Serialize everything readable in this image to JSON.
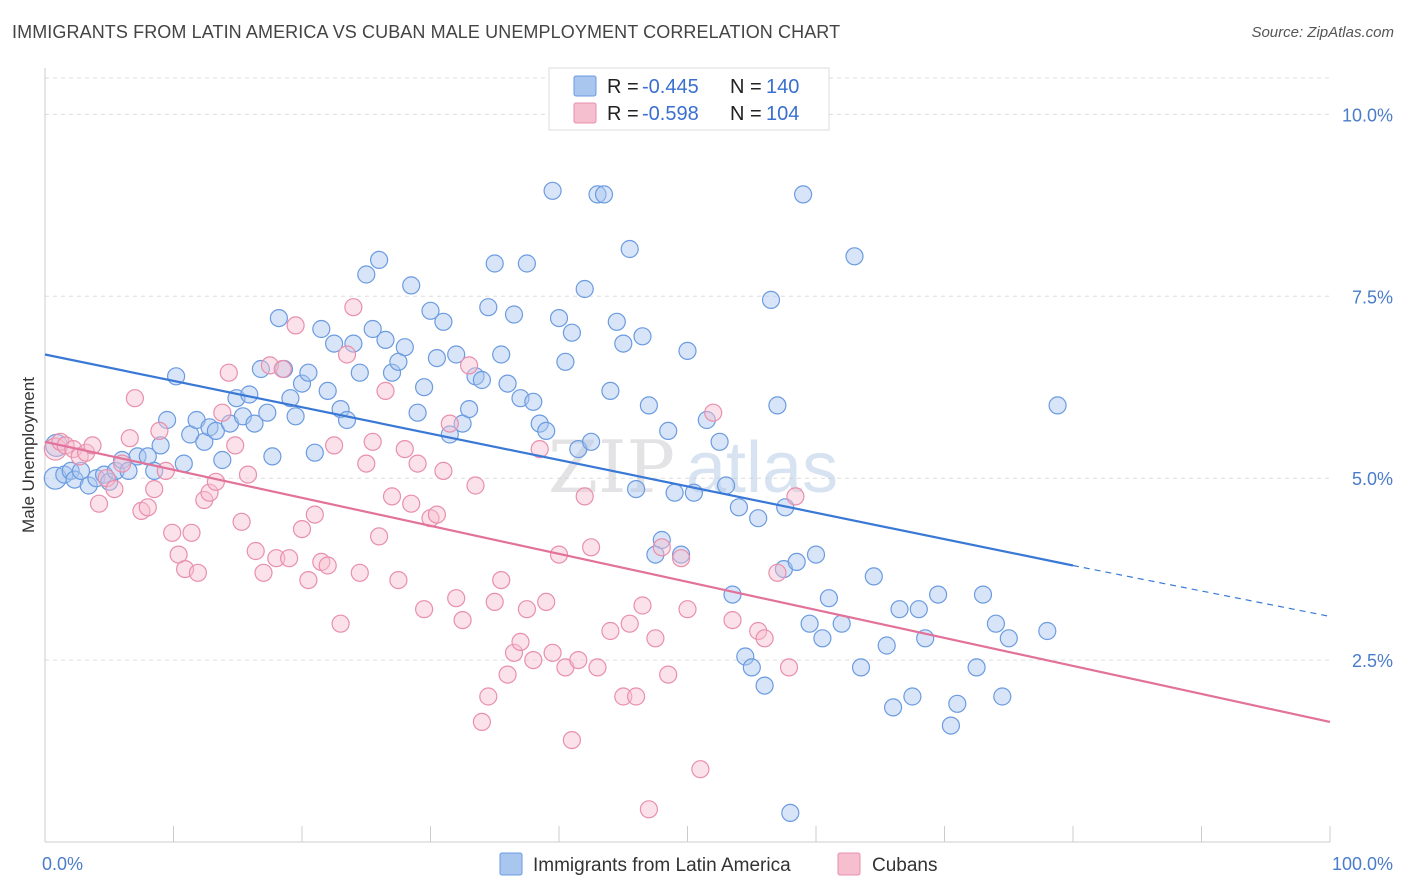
{
  "header": {
    "title": "IMMIGRANTS FROM LATIN AMERICA VS CUBAN MALE UNEMPLOYMENT CORRELATION CHART",
    "source": "Source: ZipAtlas.com"
  },
  "watermark": {
    "zip": "ZIP",
    "atlas": "atlas"
  },
  "legend": {
    "r_label": "R =",
    "n_label": "N =",
    "entries": [
      {
        "r": "-0.445",
        "n": "140"
      },
      {
        "r": "-0.598",
        "n": "104"
      }
    ]
  },
  "bottom_legend": {
    "items": [
      "Immigrants from Latin America",
      "Cubans"
    ]
  },
  "colors": {
    "blue_fill": "#a9c6ef",
    "blue_stroke": "#6b9be0",
    "blue_line": "#3a78d6",
    "pink_fill": "#f6bfd0",
    "pink_stroke": "#e98fac",
    "pink_line": "#e2729a",
    "grid": "#dddddd",
    "tick_text": "#4a7cc9"
  },
  "chart_data": {
    "type": "scatter",
    "title": "IMMIGRANTS FROM LATIN AMERICA VS CUBAN MALE UNEMPLOYMENT CORRELATION CHART",
    "xlabel": "",
    "ylabel": "Male Unemployment",
    "xlim": [
      0,
      100
    ],
    "ylim": [
      0,
      10.5
    ],
    "x_ticks": [
      "0.0%",
      "100.0%"
    ],
    "y_ticks": [
      {
        "value": 2.5,
        "label": "2.5%"
      },
      {
        "value": 5.0,
        "label": "5.0%"
      },
      {
        "value": 7.5,
        "label": "7.5%"
      },
      {
        "value": 10.0,
        "label": "10.0%"
      }
    ],
    "grid": true,
    "legend_position": "top-center",
    "series": [
      {
        "name": "Immigrants from Latin America",
        "trend": {
          "x0": 0,
          "y0": 6.7,
          "x1": 80,
          "y1": 3.8,
          "dash_to_x": 100,
          "dash_to_y": 3.1
        },
        "points": [
          [
            0.8,
            5.0
          ],
          [
            0.9,
            5.45
          ],
          [
            1.5,
            5.05
          ],
          [
            2.0,
            5.1
          ],
          [
            2.3,
            4.98
          ],
          [
            2.8,
            5.1
          ],
          [
            3.4,
            4.9
          ],
          [
            4.0,
            5.0
          ],
          [
            4.6,
            5.05
          ],
          [
            5.0,
            4.95
          ],
          [
            5.5,
            5.1
          ],
          [
            6.0,
            5.25
          ],
          [
            6.5,
            5.1
          ],
          [
            7.2,
            5.3
          ],
          [
            8.0,
            5.3
          ],
          [
            8.5,
            5.1
          ],
          [
            9.0,
            5.45
          ],
          [
            9.5,
            5.8
          ],
          [
            10.2,
            6.4
          ],
          [
            10.8,
            5.2
          ],
          [
            11.3,
            5.6
          ],
          [
            11.8,
            5.8
          ],
          [
            12.4,
            5.5
          ],
          [
            12.8,
            5.7
          ],
          [
            13.3,
            5.65
          ],
          [
            13.8,
            5.25
          ],
          [
            14.4,
            5.75
          ],
          [
            14.9,
            6.1
          ],
          [
            15.4,
            5.85
          ],
          [
            15.9,
            6.15
          ],
          [
            16.3,
            5.75
          ],
          [
            16.8,
            6.5
          ],
          [
            17.3,
            5.9
          ],
          [
            17.7,
            5.3
          ],
          [
            18.2,
            7.2
          ],
          [
            18.6,
            6.5
          ],
          [
            19.1,
            6.1
          ],
          [
            19.5,
            5.85
          ],
          [
            20.0,
            6.3
          ],
          [
            20.5,
            6.45
          ],
          [
            21.0,
            5.35
          ],
          [
            21.5,
            7.05
          ],
          [
            22.0,
            6.2
          ],
          [
            22.5,
            6.85
          ],
          [
            23.0,
            5.95
          ],
          [
            23.5,
            5.8
          ],
          [
            24.0,
            6.85
          ],
          [
            24.5,
            6.45
          ],
          [
            25.0,
            7.8
          ],
          [
            25.5,
            7.05
          ],
          [
            26.0,
            8.0
          ],
          [
            26.5,
            6.9
          ],
          [
            27.0,
            6.45
          ],
          [
            27.5,
            6.6
          ],
          [
            28.0,
            6.8
          ],
          [
            28.5,
            7.65
          ],
          [
            29.0,
            5.9
          ],
          [
            29.5,
            6.25
          ],
          [
            30.0,
            7.3
          ],
          [
            30.5,
            6.65
          ],
          [
            31.0,
            7.15
          ],
          [
            31.5,
            5.6
          ],
          [
            32.0,
            6.7
          ],
          [
            32.5,
            5.75
          ],
          [
            33.0,
            5.95
          ],
          [
            33.5,
            6.4
          ],
          [
            34.0,
            6.35
          ],
          [
            34.5,
            7.35
          ],
          [
            35.0,
            7.95
          ],
          [
            35.5,
            6.7
          ],
          [
            36.0,
            6.3
          ],
          [
            36.5,
            7.25
          ],
          [
            37.0,
            6.1
          ],
          [
            37.5,
            7.95
          ],
          [
            38.0,
            6.05
          ],
          [
            38.5,
            5.75
          ],
          [
            39.0,
            5.65
          ],
          [
            39.5,
            8.95
          ],
          [
            40.0,
            7.2
          ],
          [
            40.5,
            6.6
          ],
          [
            41.0,
            7.0
          ],
          [
            41.5,
            5.4
          ],
          [
            42.0,
            7.6
          ],
          [
            42.5,
            5.5
          ],
          [
            43.0,
            8.9
          ],
          [
            43.5,
            8.9
          ],
          [
            44.0,
            6.2
          ],
          [
            44.5,
            7.15
          ],
          [
            45.0,
            6.85
          ],
          [
            45.5,
            8.15
          ],
          [
            46.0,
            4.85
          ],
          [
            46.5,
            6.95
          ],
          [
            47.0,
            6.0
          ],
          [
            47.5,
            3.95
          ],
          [
            48.0,
            4.15
          ],
          [
            48.5,
            5.65
          ],
          [
            49.0,
            4.8
          ],
          [
            49.5,
            3.95
          ],
          [
            50.0,
            6.75
          ],
          [
            50.5,
            4.8
          ],
          [
            51.5,
            5.8
          ],
          [
            52.5,
            5.5
          ],
          [
            53.0,
            4.9
          ],
          [
            53.5,
            3.4
          ],
          [
            54.0,
            4.6
          ],
          [
            54.5,
            2.55
          ],
          [
            55.0,
            2.4
          ],
          [
            55.5,
            4.45
          ],
          [
            56.0,
            2.15
          ],
          [
            56.5,
            7.45
          ],
          [
            57.0,
            6.0
          ],
          [
            57.5,
            3.75
          ],
          [
            58.0,
            0.4
          ],
          [
            58.5,
            3.85
          ],
          [
            59.0,
            8.9
          ],
          [
            59.5,
            3.0
          ],
          [
            60.0,
            3.95
          ],
          [
            60.5,
            2.8
          ],
          [
            61.0,
            3.35
          ],
          [
            62.0,
            3.0
          ],
          [
            63.0,
            8.05
          ],
          [
            63.5,
            2.4
          ],
          [
            64.5,
            3.65
          ],
          [
            65.5,
            2.7
          ],
          [
            66.0,
            1.85
          ],
          [
            66.5,
            3.2
          ],
          [
            67.5,
            2.0
          ],
          [
            68.0,
            3.2
          ],
          [
            68.5,
            2.8
          ],
          [
            69.5,
            3.4
          ],
          [
            70.5,
            1.6
          ],
          [
            71.0,
            1.9
          ],
          [
            72.5,
            2.4
          ],
          [
            73.0,
            3.4
          ],
          [
            74.0,
            3.0
          ],
          [
            74.5,
            2.0
          ],
          [
            75.0,
            2.8
          ],
          [
            78.0,
            2.9
          ],
          [
            78.8,
            6.0
          ],
          [
            57.6,
            4.6
          ]
        ]
      },
      {
        "name": "Cubans",
        "trend": {
          "x0": 0,
          "y0": 5.5,
          "x1": 100,
          "y1": 1.65
        },
        "points": [
          [
            0.8,
            5.4
          ],
          [
            1.2,
            5.5
          ],
          [
            1.6,
            5.45
          ],
          [
            2.2,
            5.4
          ],
          [
            2.7,
            5.3
          ],
          [
            3.2,
            5.35
          ],
          [
            3.7,
            5.45
          ],
          [
            4.2,
            4.65
          ],
          [
            4.8,
            5.0
          ],
          [
            5.4,
            4.85
          ],
          [
            6.0,
            5.2
          ],
          [
            6.6,
            5.55
          ],
          [
            7.0,
            6.1
          ],
          [
            7.5,
            4.55
          ],
          [
            8.0,
            4.6
          ],
          [
            8.5,
            4.85
          ],
          [
            8.9,
            5.65
          ],
          [
            9.4,
            5.1
          ],
          [
            9.9,
            4.25
          ],
          [
            10.4,
            3.95
          ],
          [
            10.9,
            3.75
          ],
          [
            11.4,
            4.25
          ],
          [
            11.9,
            3.7
          ],
          [
            12.4,
            4.7
          ],
          [
            12.8,
            4.8
          ],
          [
            13.3,
            4.95
          ],
          [
            13.8,
            5.9
          ],
          [
            14.3,
            6.45
          ],
          [
            14.8,
            5.45
          ],
          [
            15.3,
            4.4
          ],
          [
            15.8,
            5.05
          ],
          [
            16.4,
            4.0
          ],
          [
            17.0,
            3.7
          ],
          [
            17.5,
            6.55
          ],
          [
            18.0,
            3.9
          ],
          [
            18.5,
            6.5
          ],
          [
            19.0,
            3.9
          ],
          [
            19.5,
            7.1
          ],
          [
            20.0,
            4.3
          ],
          [
            20.5,
            3.6
          ],
          [
            21.0,
            4.5
          ],
          [
            21.5,
            3.85
          ],
          [
            22.0,
            3.8
          ],
          [
            22.5,
            5.45
          ],
          [
            23.0,
            3.0
          ],
          [
            23.5,
            6.7
          ],
          [
            24.0,
            7.35
          ],
          [
            24.5,
            3.7
          ],
          [
            25.0,
            5.2
          ],
          [
            25.5,
            5.5
          ],
          [
            26.0,
            4.2
          ],
          [
            26.5,
            6.2
          ],
          [
            27.0,
            4.75
          ],
          [
            27.5,
            3.6
          ],
          [
            28.0,
            5.4
          ],
          [
            28.5,
            4.65
          ],
          [
            29.0,
            5.2
          ],
          [
            29.5,
            3.2
          ],
          [
            30.0,
            4.45
          ],
          [
            30.5,
            4.5
          ],
          [
            31.0,
            5.1
          ],
          [
            31.5,
            5.75
          ],
          [
            32.0,
            3.35
          ],
          [
            32.5,
            3.05
          ],
          [
            33.0,
            6.55
          ],
          [
            33.5,
            4.9
          ],
          [
            34.0,
            1.65
          ],
          [
            34.5,
            2.0
          ],
          [
            35.0,
            3.3
          ],
          [
            35.5,
            3.6
          ],
          [
            36.0,
            2.3
          ],
          [
            36.5,
            2.6
          ],
          [
            37.0,
            2.75
          ],
          [
            37.5,
            3.2
          ],
          [
            38.0,
            2.5
          ],
          [
            38.5,
            5.4
          ],
          [
            39.0,
            3.3
          ],
          [
            39.5,
            2.6
          ],
          [
            40.0,
            3.95
          ],
          [
            40.5,
            2.4
          ],
          [
            41.0,
            1.4
          ],
          [
            41.5,
            2.5
          ],
          [
            42.0,
            4.75
          ],
          [
            42.5,
            4.05
          ],
          [
            43.0,
            2.4
          ],
          [
            44.0,
            2.9
          ],
          [
            45.0,
            2.0
          ],
          [
            45.5,
            3.0
          ],
          [
            46.0,
            2.0
          ],
          [
            46.5,
            3.25
          ],
          [
            47.0,
            0.45
          ],
          [
            47.5,
            2.8
          ],
          [
            48.0,
            4.05
          ],
          [
            48.5,
            2.3
          ],
          [
            49.5,
            3.9
          ],
          [
            50.0,
            3.2
          ],
          [
            51.0,
            1.0
          ],
          [
            52.0,
            5.9
          ],
          [
            53.5,
            3.05
          ],
          [
            55.5,
            2.9
          ],
          [
            56.0,
            2.8
          ],
          [
            57.0,
            3.7
          ],
          [
            57.9,
            2.4
          ],
          [
            58.4,
            4.75
          ]
        ]
      }
    ]
  }
}
